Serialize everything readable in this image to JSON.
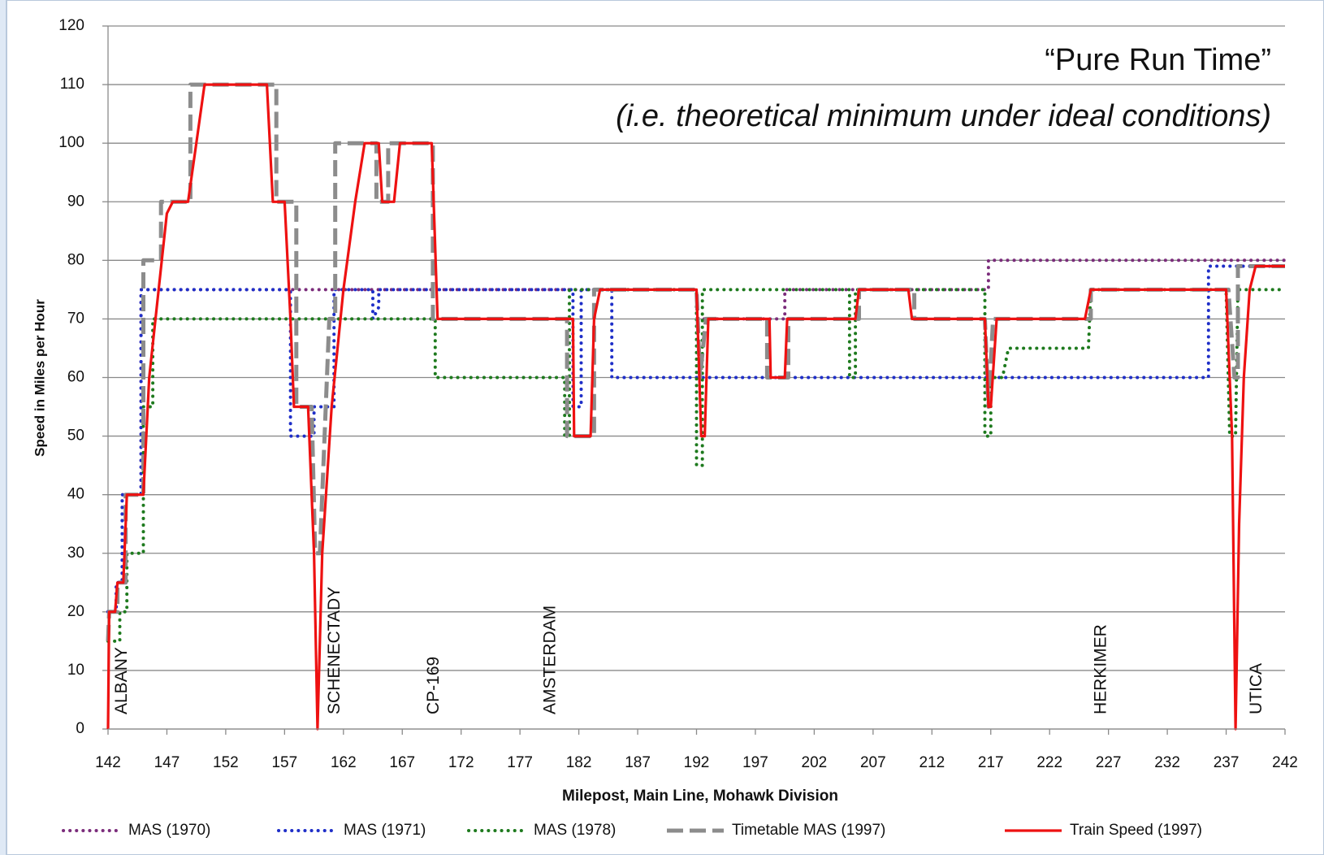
{
  "chart_data": {
    "type": "line",
    "annotations": [
      "“Pure Run Time”",
      "(i.e. theoretical minimum under ideal conditions)"
    ],
    "x_label": "Milepost, Main Line, Mohawk Division",
    "y_label": "Speed in Miles per Hour",
    "stations": [
      {
        "label": "ALBANY",
        "x": 143.2
      },
      {
        "label": "SCHENECTADY",
        "x": 161.3
      },
      {
        "label": "CP-169",
        "x": 169.7
      },
      {
        "label": "AMSTERDAM",
        "x": 179.6
      },
      {
        "label": "HERKIMER",
        "x": 226.4
      },
      {
        "label": "UTICA",
        "x": 239.6
      }
    ],
    "xlim": [
      142,
      242
    ],
    "xticks": [
      142,
      147,
      152,
      157,
      162,
      167,
      172,
      177,
      182,
      187,
      192,
      197,
      202,
      207,
      212,
      217,
      222,
      227,
      232,
      237,
      242
    ],
    "ylim": [
      0,
      120
    ],
    "yticks": [
      0,
      10,
      20,
      30,
      40,
      50,
      60,
      70,
      80,
      90,
      100,
      110,
      120
    ],
    "grid": true,
    "series": [
      {
        "name": "MAS (1970)",
        "color": "#7b2c7b",
        "style": "dotted",
        "x": [
          142,
          142.7,
          142.7,
          143.2,
          143.2,
          144.8,
          144.8,
          192,
          192,
          199.5,
          199.5,
          216.8,
          216.8,
          242
        ],
        "values": [
          20,
          20,
          25,
          25,
          40,
          40,
          75,
          75,
          70,
          70,
          75,
          75,
          80,
          80
        ]
      },
      {
        "name": "MAS (1971)",
        "color": "#1f2fc8",
        "style": "dotted",
        "x": [
          142,
          142.7,
          142.7,
          143.2,
          143.2,
          144.8,
          144.8,
          157.5,
          157.5,
          159.5,
          159.5,
          161.2,
          161.2,
          164.5,
          164.5,
          165,
          165,
          181.5,
          181.5,
          182.2,
          182.2,
          184.8,
          184.8,
          235.5,
          235.5,
          237.5,
          242
        ],
        "values": [
          20,
          20,
          25,
          25,
          40,
          40,
          75,
          75,
          50,
          50,
          55,
          55,
          75,
          75,
          70,
          72,
          75,
          75,
          55,
          55,
          75,
          75,
          60,
          60,
          79,
          79,
          79
        ]
      },
      {
        "name": "MAS (1978)",
        "color": "#1e7a1e",
        "style": "dotted",
        "x": [
          142,
          143,
          143,
          143.6,
          143.6,
          145,
          145,
          145.8,
          145.8,
          169.8,
          169.8,
          180.8,
          180.8,
          181.2,
          181.2,
          192,
          192,
          192.5,
          192.5,
          205,
          205,
          205.5,
          205.5,
          216.5,
          216.5,
          217,
          217,
          218,
          218.5,
          225.3,
          225.5,
          237,
          237.3,
          237.8,
          238,
          242
        ],
        "values": [
          15,
          15,
          20,
          20,
          30,
          30,
          55,
          55,
          70,
          70,
          60,
          60,
          50,
          50,
          75,
          75,
          45,
          45,
          75,
          75,
          60,
          60,
          75,
          75,
          50,
          50,
          60,
          60,
          65,
          65,
          75,
          75,
          50,
          50,
          75,
          75
        ]
      },
      {
        "name": "Timetable MAS (1997)",
        "color": "#8c8c8c",
        "style": "dashed",
        "x": [
          142,
          142.1,
          142.8,
          142.8,
          143.5,
          143.5,
          145,
          145,
          146.5,
          146.5,
          149,
          149,
          156.3,
          156.3,
          158,
          158,
          159.3,
          159.6,
          160,
          160.8,
          161.3,
          161.3,
          164.8,
          164.8,
          165.8,
          165.8,
          169.6,
          169.6,
          181,
          181,
          183.3,
          183.3,
          192,
          192.3,
          192.8,
          198,
          198,
          199.8,
          199.8,
          205.8,
          205.8,
          210.5,
          210.5,
          216.5,
          216.8,
          217.2,
          225.5,
          225.5,
          237.2,
          237.7,
          238,
          238,
          242
        ],
        "values": [
          15,
          20,
          20,
          25,
          25,
          40,
          40,
          80,
          80,
          90,
          90,
          110,
          110,
          90,
          90,
          55,
          55,
          30,
          30,
          70,
          70,
          100,
          100,
          90,
          90,
          100,
          100,
          70,
          70,
          50,
          50,
          75,
          75,
          60,
          70,
          70,
          60,
          60,
          70,
          70,
          75,
          75,
          70,
          70,
          55,
          70,
          70,
          75,
          75,
          60,
          60,
          79,
          79
        ]
      },
      {
        "name": "Train Speed (1997)",
        "color": "#ee1111",
        "style": "solid",
        "x": [
          142,
          142.1,
          142.6,
          142.8,
          143.3,
          143.6,
          145,
          145.5,
          146.3,
          147,
          147.5,
          148.8,
          149.5,
          150.2,
          155.5,
          156,
          157,
          157.5,
          157.8,
          159,
          159.5,
          159.8,
          160.2,
          161,
          162,
          163,
          163.8,
          165,
          165.3,
          166.3,
          166.8,
          169.5,
          170,
          181.5,
          181.6,
          183,
          183.3,
          183.8,
          192,
          192.4,
          192.7,
          193,
          198.2,
          198.3,
          199.5,
          199.7,
          205.5,
          205.8,
          210,
          210.3,
          216.5,
          216.8,
          217,
          217.5,
          225,
          225.5,
          237,
          237.5,
          237.8,
          238.1,
          238.5,
          239,
          239.5,
          242
        ],
        "values": [
          0,
          20,
          20,
          25,
          25,
          40,
          40,
          60,
          75,
          88,
          90,
          90,
          100,
          110,
          110,
          90,
          90,
          70,
          55,
          55,
          30,
          0,
          30,
          55,
          75,
          90,
          100,
          100,
          90,
          90,
          100,
          100,
          70,
          70,
          50,
          50,
          70,
          75,
          75,
          50,
          50,
          70,
          70,
          60,
          60,
          70,
          70,
          75,
          75,
          70,
          70,
          55,
          55,
          70,
          70,
          75,
          75,
          50,
          0,
          35,
          60,
          75,
          79,
          79
        ]
      }
    ]
  }
}
